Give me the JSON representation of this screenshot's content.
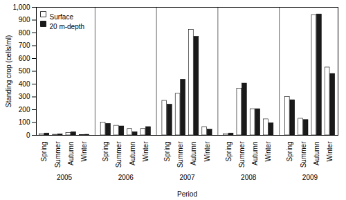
{
  "chart_data": {
    "type": "bar",
    "xlabel": "Period",
    "ylabel": "Standing crop (cells/ml)",
    "groups": [
      "2005",
      "2006",
      "2007",
      "2008",
      "2009"
    ],
    "categories": [
      "Spring",
      "Summer",
      "Autumn",
      "Winter",
      "Spring",
      "Summer",
      "Autumn",
      "Winter",
      "Spring",
      "Summer",
      "Autumn",
      "Winter",
      "Spring",
      "Summer",
      "Autumn",
      "Winter",
      "Spring",
      "Summer",
      "Autumn",
      "Winter"
    ],
    "series": [
      {
        "name": "Surface",
        "color": "#ffffff",
        "values": [
          10,
          5,
          20,
          3,
          100,
          75,
          50,
          50,
          270,
          325,
          825,
          65,
          10,
          365,
          205,
          125,
          300,
          130,
          940,
          530
        ]
      },
      {
        "name": "20 m-depth",
        "color": "#1a1a1a",
        "values": [
          15,
          8,
          25,
          5,
          90,
          70,
          25,
          65,
          240,
          435,
          770,
          45,
          15,
          405,
          205,
          95,
          275,
          120,
          945,
          480
        ]
      }
    ],
    "ylim": [
      0,
      1000
    ],
    "yticks": [
      0,
      100,
      200,
      300,
      400,
      500,
      600,
      700,
      800,
      900,
      1000
    ],
    "legend": "upper left"
  }
}
